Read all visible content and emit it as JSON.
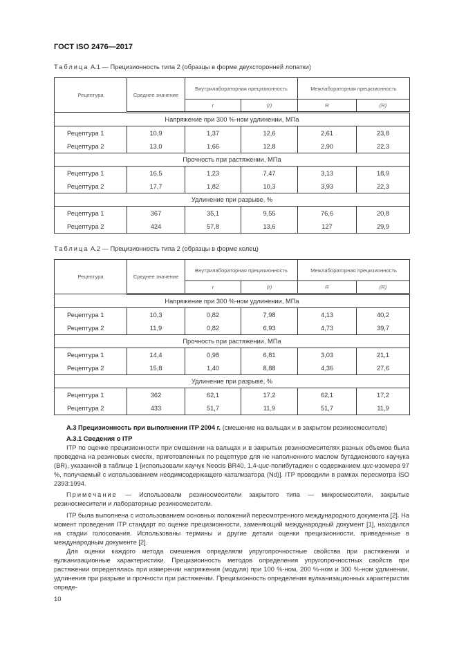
{
  "page_header": "ГОСТ ISO 2476—2017",
  "tables": [
    {
      "caption_prefix": "Таблица",
      "caption": "А.1 — Прецизионность типа 2 (образцы в форме двухсторонней лопатки)",
      "headers": {
        "recipe": "Рецептура",
        "mean": "Среднее значение",
        "within": "Внутрилабораторная прецизионность",
        "between": "Межлабораторная прецизионность",
        "r": "r",
        "r_rel": "(r)",
        "R": "R",
        "R_rel": "(R)"
      },
      "sections": [
        {
          "title": "Напряжение при 300 %-ном удлинении, МПа",
          "rows": [
            [
              "Рецептура 1",
              "10,9",
              "1,37",
              "12,6",
              "2,61",
              "23,8"
            ],
            [
              "Рецептура 2",
              "13,0",
              "1,66",
              "12,8",
              "2,90",
              "22,3"
            ]
          ]
        },
        {
          "title": "Прочность при растяжении, МПа",
          "rows": [
            [
              "Рецептура 1",
              "16,5",
              "1,23",
              "7,47",
              "3,13",
              "18,9"
            ],
            [
              "Рецептура 2",
              "17,7",
              "1,82",
              "10,3",
              "3,93",
              "22,3"
            ]
          ]
        },
        {
          "title": "Удлинение при разрыве, %",
          "rows": [
            [
              "Рецептура 1",
              "367",
              "35,1",
              "9,55",
              "76,6",
              "20,8"
            ],
            [
              "Рецептура 2",
              "424",
              "57,8",
              "13,6",
              "127",
              "29,9"
            ]
          ]
        }
      ]
    },
    {
      "caption_prefix": "Таблица",
      "caption": "А.2 — Прецизионность типа 2 (образцы в форме колец)",
      "headers": {
        "recipe": "Рецептура",
        "mean": "Среднее значение",
        "within": "Внутрилабораторная прецизионность",
        "between": "Межлабораторная прецизионность",
        "r": "r",
        "r_rel": "(r)",
        "R": "R",
        "R_rel": "(R)"
      },
      "sections": [
        {
          "title": "Напряжение при 300 %-ном удлинении, МПа",
          "rows": [
            [
              "Рецептура 1",
              "10,3",
              "0,82",
              "7,98",
              "4,13",
              "40,2"
            ],
            [
              "Рецептура 2",
              "11,9",
              "0,82",
              "6,93",
              "4,73",
              "39,7"
            ]
          ]
        },
        {
          "title": "Прочность при растяжении, МПа",
          "rows": [
            [
              "Рецептура 1",
              "14,4",
              "0,98",
              "6,81",
              "3,03",
              "21,1"
            ],
            [
              "Рецептура 2",
              "15,8",
              "1,40",
              "8,88",
              "4,36",
              "27,6"
            ]
          ]
        },
        {
          "title": "Удлинение при разрыве, %",
          "rows": [
            [
              "Рецептура 1",
              "362",
              "62,1",
              "17,2",
              "62,1",
              "17,2"
            ],
            [
              "Рецептура 2",
              "433",
              "51,7",
              "11,9",
              "51,7",
              "11,9"
            ]
          ]
        }
      ]
    }
  ],
  "body": {
    "a3_heading": "А.3 Прецизионность при выполнении ITP 2004 г.",
    "a3_heading_rest": " (смешение на вальцах и в закрытом резиносмесителе)",
    "a31_heading": "А.3.1 Сведения о ITP",
    "p1_a": "ITP по оценке прецизионности при смешении на вальцах и в закрытых резиносмесителях разных объемов была проведена на резиновых смесях, приготовленных по рецептуре для не наполненного маслом бутадиенового каучука (BR), указанной в таблице 1 [использовали каучук Neocis BR40, 1,4-",
    "p1_cis1": "цис",
    "p1_b": "-полибутадиен с содержанием ",
    "p1_cis2": "цис",
    "p1_c": "-изомера 97 %, получаемый с использованием неодимсодержащего катализатора (Nd)]. ITP проводили в рамках пересмотра ISO 2393:1994.",
    "note_label": "Примечание",
    "note_text": " — Использовали резиносмесители закрытого типа — микросмесители, закрытые резиносмесители и лабораторные резиносмесители.",
    "p2": "ITP была выполнена с использованием основных положений пересмотренного международного документа [2]. На момент проведения ITP стандарт по оценке прецизионности, заменяющий международный документ [1], находился на стадии голосования. Использованы термины и другие детали оценки прецизионности, приведенные в международным документе [2].",
    "p3": "Для оценки каждого метода смешения определяли упругопрочностные свойства при растяжении и вулканизационные характеристики. Прецизионность методов определения упругопрочностных свойств при растяжении определялась при измерении напряжения (модуля) при 100 %-ном, 200 %-ном и 300 %-ном удлинении, удлинения при разрыве и прочности при растяжении. Прецизионность определения вулканизационных характеристик опреде-"
  },
  "page_number": "10"
}
